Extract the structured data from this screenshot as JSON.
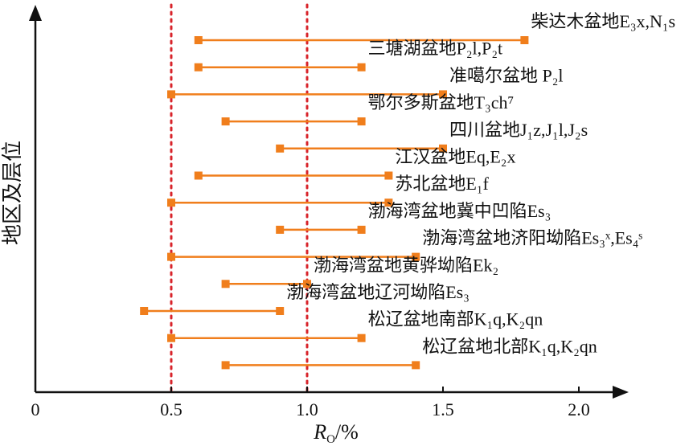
{
  "chart_data": {
    "type": "range",
    "xlabel": "Ro/%",
    "ylabel": "地区及层位",
    "xlim": [
      0,
      2.2
    ],
    "x_ticks": [
      "0",
      "0.5",
      "1.0",
      "1.5",
      "2.0"
    ],
    "reference_lines": [
      0.5,
      1.0
    ],
    "colors": {
      "bar": "#f07e1c",
      "reference": "#d8232a",
      "axis": "#111111"
    },
    "items": [
      {
        "label": "柴达木盆地E₃x,N₁s",
        "min": 0.6,
        "max": 1.8
      },
      {
        "label": "三塘湖盆地P₂l,P₂t",
        "min": 0.6,
        "max": 1.2
      },
      {
        "label": "准噶尔盆地 P₂l",
        "min": 0.5,
        "max": 1.5
      },
      {
        "label": "鄂尔多斯盆地T₃ch⁷",
        "min": 0.7,
        "max": 1.2
      },
      {
        "label": "四川盆地J₁z,J₁l,J₂s",
        "min": 0.9,
        "max": 1.5
      },
      {
        "label": "江汉盆地Eq,E₂x",
        "min": 0.6,
        "max": 1.3
      },
      {
        "label": "苏北盆地E₁f",
        "min": 0.5,
        "max": 1.3
      },
      {
        "label": "渤海湾盆地冀中凹陷Es₃",
        "min": 0.9,
        "max": 1.2
      },
      {
        "label": "渤海湾盆地济阳坳陷Es₃ˣ,Es₄ˢ",
        "min": 0.5,
        "max": 1.4
      },
      {
        "label": "渤海湾盆地黄骅坳陷Ek₂",
        "min": 0.7,
        "max": 1.0
      },
      {
        "label": "渤海湾盆地辽河坳陷Es₃",
        "min": 0.4,
        "max": 0.9
      },
      {
        "label": "松辽盆地南部K₁q,K₂qn",
        "min": 0.5,
        "max": 1.2
      },
      {
        "label": "松辽盆地北部K₁q,K₂qn",
        "min": 0.7,
        "max": 1.4
      }
    ]
  }
}
